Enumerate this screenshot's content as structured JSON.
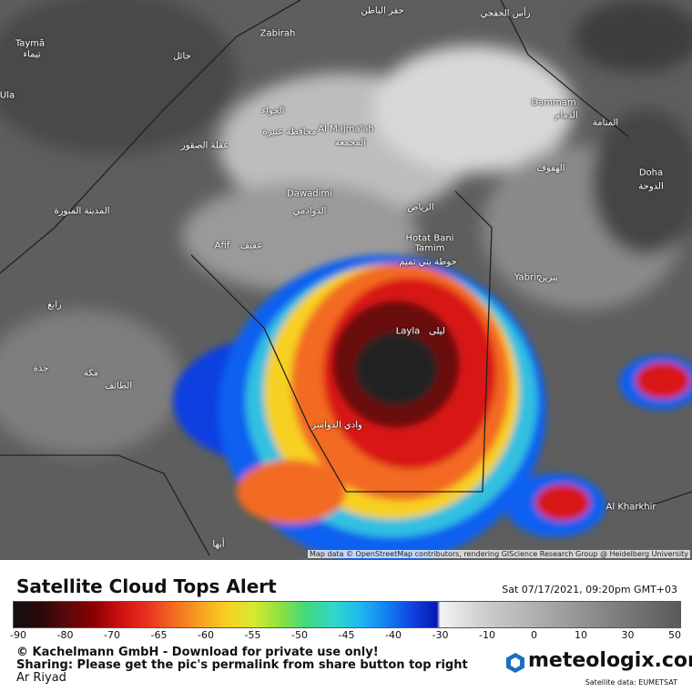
{
  "map": {
    "labels": [
      "حفر الباطن",
      "رأس الخفجي",
      "Taymā",
      "تيماء",
      "Zabirah",
      "حائل",
      "Ula",
      "Dammam",
      "الدمام",
      "المنامة",
      "الجواء",
      "محافظة عنيزة",
      "عقلة الصقور",
      "Al Majma'ah",
      "المجمعة",
      "الهفوف",
      "Doha",
      "الدوحة",
      "Dawadimi",
      "الدوادمي",
      "المدينة المنورة",
      "الرياض",
      "Hotat Bani",
      "Tamim",
      "حوطة بني تميم",
      "Afif",
      "عفيف",
      "Yabrin",
      "يبرين",
      "رابغ",
      "Layla",
      "ليلى",
      "جدة",
      "مكة",
      "الطائف",
      "وادي الدواسر",
      "Al Kharkhir",
      "أبها"
    ],
    "attribution": "Map data © OpenStreetMap contributors, rendering GIScience Research Group @ Heidelberg University"
  },
  "footer": {
    "title": "Satellite Cloud Tops Alert",
    "timestamp": "Sat 07/17/2021, 09:20pm GMT+03",
    "scale_ticks": [
      -90,
      -80,
      -70,
      -65,
      -60,
      -55,
      -50,
      -45,
      -40,
      -30,
      -10,
      0,
      10,
      30,
      50
    ],
    "copyright": "© Kachelmann GmbH - Download for private use only!",
    "sharing": "Sharing: Please get the pic's permalink from share button top right",
    "location": "Ar Riyad",
    "logo": "meteologix.com",
    "source": "Satellite data: EUMETSAT"
  }
}
